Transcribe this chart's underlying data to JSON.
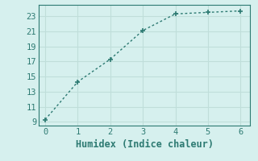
{
  "x": [
    0,
    1,
    2,
    3,
    4,
    5,
    6
  ],
  "y": [
    9.3,
    14.3,
    17.3,
    21.1,
    23.3,
    23.5,
    23.7
  ],
  "xlabel": "Humidex (Indice chaleur)",
  "xlim": [
    -0.2,
    6.3
  ],
  "ylim": [
    8.5,
    24.5
  ],
  "yticks": [
    9,
    11,
    13,
    15,
    17,
    19,
    21,
    23
  ],
  "xticks": [
    0,
    1,
    2,
    3,
    4,
    5,
    6
  ],
  "bg_color": "#d6f0ee",
  "line_color": "#2d7a72",
  "grid_color": "#c0deda",
  "font_color": "#2d7a72",
  "xlabel_fontsize": 8.5,
  "tick_fontsize": 7.5
}
